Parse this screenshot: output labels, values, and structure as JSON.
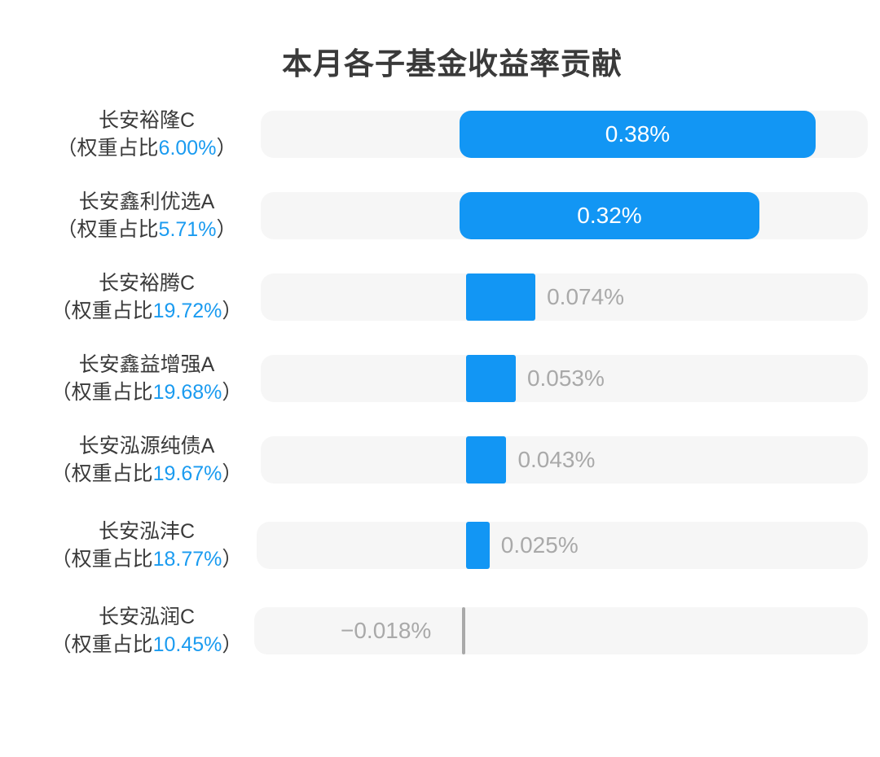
{
  "chart_data": {
    "type": "bar",
    "orientation": "horizontal",
    "title": "本月各子基金收益率贡献",
    "weight_prefix": "（权重占比",
    "weight_suffix": "）",
    "categories": [
      "长安裕隆C",
      "长安鑫利优选A",
      "长安裕腾C",
      "长安鑫益增强A",
      "长安泓源纯债A",
      "长安泓沣C",
      "长安泓润C"
    ],
    "weights": [
      "6.00%",
      "5.71%",
      "19.72%",
      "19.68%",
      "19.67%",
      "18.77%",
      "10.45%"
    ],
    "values": [
      0.38,
      0.32,
      0.074,
      0.053,
      0.043,
      0.025,
      -0.018
    ],
    "value_labels": [
      "0.38%",
      "0.32%",
      "0.074%",
      "0.053%",
      "0.043%",
      "0.025%",
      "−0.018%"
    ],
    "unit": "%",
    "grid": false,
    "legend": "none",
    "colors": {
      "positive": "#1296f4",
      "negative": "#a9a9a9",
      "track": "#f6f6f6",
      "weight_text": "#1a9bf0",
      "label_text": "#3a3a3a",
      "outside_value_text": "#a9a9a9",
      "inside_value_text": "#ffffff"
    }
  }
}
